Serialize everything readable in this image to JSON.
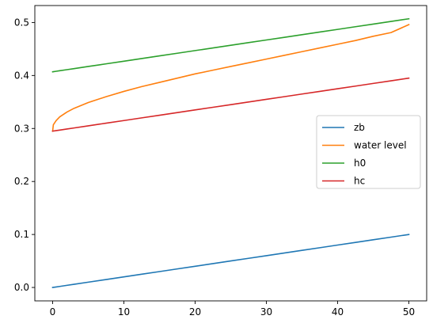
{
  "chart_data": {
    "type": "line",
    "title": "",
    "xlabel": "",
    "ylabel": "",
    "xlim": [
      -2.5,
      52.5
    ],
    "ylim": [
      -0.0253,
      0.532
    ],
    "grid": false,
    "legend_position": "center-right",
    "x_ticks": [
      0,
      10,
      20,
      30,
      40,
      50
    ],
    "x_tick_labels": [
      "0",
      "10",
      "20",
      "30",
      "40",
      "50"
    ],
    "y_ticks": [
      0.0,
      0.1,
      0.2,
      0.3,
      0.4,
      0.5
    ],
    "y_tick_labels": [
      "0.0",
      "0.1",
      "0.2",
      "0.3",
      "0.4",
      "0.5"
    ],
    "x": [
      0,
      0.1,
      0.5,
      1,
      2,
      3,
      5,
      7.5,
      10,
      12.5,
      15,
      17.5,
      20,
      22.5,
      25,
      27.5,
      30,
      32.5,
      35,
      37.5,
      40,
      42.5,
      45,
      47.5,
      50
    ],
    "series": [
      {
        "name": "zb",
        "color": "#1f77b4",
        "values": [
          0.0,
          0.0002,
          0.001,
          0.002,
          0.004,
          0.006,
          0.01,
          0.015,
          0.02,
          0.025,
          0.03,
          0.035,
          0.04,
          0.045,
          0.05,
          0.055,
          0.06,
          0.065,
          0.07,
          0.075,
          0.08,
          0.085,
          0.09,
          0.095,
          0.1
        ]
      },
      {
        "name": "water level",
        "color": "#ff7f0e",
        "values": [
          0.295,
          0.307,
          0.315,
          0.322,
          0.331,
          0.338,
          0.349,
          0.36,
          0.37,
          0.379,
          0.387,
          0.395,
          0.403,
          0.41,
          0.417,
          0.424,
          0.431,
          0.438,
          0.445,
          0.452,
          0.459,
          0.466,
          0.474,
          0.481,
          0.496
        ]
      },
      {
        "name": "h0",
        "color": "#2ca02c",
        "values": [
          0.407,
          0.4072,
          0.408,
          0.409,
          0.411,
          0.413,
          0.417,
          0.422,
          0.427,
          0.432,
          0.437,
          0.442,
          0.447,
          0.452,
          0.457,
          0.462,
          0.467,
          0.472,
          0.477,
          0.482,
          0.487,
          0.492,
          0.497,
          0.502,
          0.507
        ]
      },
      {
        "name": "hc",
        "color": "#d62728",
        "values": [
          0.295,
          0.2952,
          0.296,
          0.297,
          0.299,
          0.301,
          0.305,
          0.31,
          0.315,
          0.32,
          0.325,
          0.33,
          0.335,
          0.34,
          0.345,
          0.35,
          0.355,
          0.36,
          0.365,
          0.37,
          0.375,
          0.38,
          0.385,
          0.39,
          0.395
        ]
      }
    ]
  }
}
